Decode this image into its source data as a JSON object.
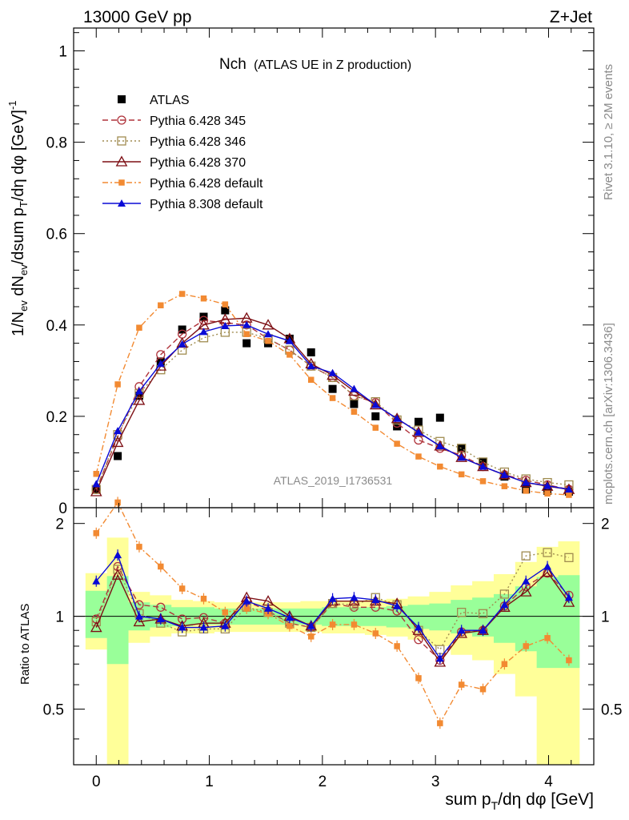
{
  "header": {
    "left": "13000 GeV pp",
    "right": "Z+Jet"
  },
  "side_text": {
    "rivet": "Rivet 3.1.10, ≥ 2M events",
    "mcplots": "mcplots.cern.ch [arXiv:1306.3436]"
  },
  "analysis_id": "ATLAS_2019_I1736531",
  "colors": {
    "atlas": "#000000",
    "p345": "#b0343c",
    "p346": "#a08c50",
    "p370": "#7d0f14",
    "p6def": "#f28a32",
    "p8def": "#0a0ad6",
    "band_outer": "#ffff99",
    "band_inner": "#99ff99"
  },
  "chart_data": {
    "type": "line",
    "title": "Nch (ATLAS UE in Z production)",
    "title_main": "Nch",
    "title_sub": "(ATLAS UE in Z production)",
    "ylabel": "1/N_ev dN_ev/dsum p_T/dη dφ [GeV]^-1",
    "xlabel": "sum p_T/dη dφ [GeV]",
    "ratio_ylabel": "Ratio to ATLAS",
    "xlim": [
      -0.2,
      4.4
    ],
    "ylim": [
      0,
      1.05
    ],
    "ratio_ylim": [
      0.33,
      2.25
    ],
    "x_ticks": [
      "0",
      "1",
      "2",
      "3",
      "4"
    ],
    "y_ticks": [
      "0",
      "0.2",
      "0.4",
      "0.6",
      "0.8",
      "1"
    ],
    "ratio_ticks": [
      "0.5",
      "1",
      "2"
    ],
    "x": [
      0.0,
      0.19,
      0.38,
      0.57,
      0.76,
      0.95,
      1.14,
      1.33,
      1.52,
      1.71,
      1.9,
      2.09,
      2.28,
      2.47,
      2.66,
      2.85,
      3.04,
      3.23,
      3.42,
      3.61,
      3.8,
      3.99,
      4.18
    ],
    "series": [
      {
        "name": "ATLAS",
        "key": "atlas",
        "style": "data",
        "values": [
          0.04,
          0.113,
          0.245,
          0.32,
          0.39,
          0.418,
          0.432,
          0.36,
          0.36,
          0.37,
          0.34,
          0.26,
          0.227,
          0.2,
          0.178,
          0.188,
          0.197,
          0.13,
          0.1,
          0.068,
          0.04,
          0.037,
          0.035
        ]
      },
      {
        "name": "Pythia 6.428 345",
        "key": "p345",
        "style": "circle",
        "dash": "7,4",
        "values": [
          0.04,
          0.155,
          0.265,
          0.335,
          0.38,
          0.41,
          0.405,
          0.4,
          0.37,
          0.345,
          0.31,
          0.285,
          0.245,
          0.23,
          0.185,
          0.148,
          0.13,
          0.115,
          0.09,
          0.072,
          0.06,
          0.05,
          0.04
        ]
      },
      {
        "name": "Pythia 6.428 346",
        "key": "p346",
        "style": "square",
        "dash": "2,3",
        "values": [
          0.04,
          0.16,
          0.25,
          0.302,
          0.345,
          0.372,
          0.384,
          0.384,
          0.37,
          0.345,
          0.31,
          0.285,
          0.245,
          0.232,
          0.192,
          0.17,
          0.145,
          0.13,
          0.1,
          0.078,
          0.063,
          0.055,
          0.05
        ]
      },
      {
        "name": "Pythia 6.428 370",
        "key": "p370",
        "style": "triangle-open",
        "dash": "",
        "values": [
          0.035,
          0.143,
          0.235,
          0.31,
          0.36,
          0.4,
          0.412,
          0.415,
          0.4,
          0.37,
          0.315,
          0.29,
          0.255,
          0.225,
          0.195,
          0.165,
          0.135,
          0.11,
          0.09,
          0.072,
          0.055,
          0.047,
          0.04
        ]
      },
      {
        "name": "Pythia 6.428 default",
        "key": "p6def",
        "style": "square-filled",
        "dash": "7,3,2,3",
        "values": [
          0.074,
          0.27,
          0.394,
          0.443,
          0.468,
          0.458,
          0.445,
          0.38,
          0.365,
          0.335,
          0.28,
          0.24,
          0.21,
          0.175,
          0.14,
          0.112,
          0.09,
          0.073,
          0.058,
          0.047,
          0.037,
          0.031,
          0.028
        ]
      },
      {
        "name": "Pythia 8.308 default",
        "key": "p8def",
        "style": "triangle-filled",
        "dash": "",
        "values": [
          0.052,
          0.168,
          0.255,
          0.315,
          0.358,
          0.385,
          0.398,
          0.4,
          0.38,
          0.365,
          0.31,
          0.295,
          0.26,
          0.225,
          0.195,
          0.165,
          0.135,
          0.11,
          0.09,
          0.072,
          0.055,
          0.048,
          0.04
        ]
      }
    ],
    "ratios": [
      {
        "key": "p345",
        "values": [
          0.98,
          1.45,
          1.09,
          1.07,
          0.98,
          0.99,
          0.95,
          1.12,
          1.04,
          0.95,
          0.92,
          1.1,
          1.07,
          1.07,
          1.04,
          0.84,
          0.72,
          0.89,
          0.9,
          1.08,
          1.25,
          1.38,
          1.17
        ]
      },
      {
        "key": "p346",
        "values": [
          0.96,
          1.42,
          1.02,
          0.95,
          0.89,
          0.91,
          0.91,
          1.07,
          1.03,
          0.95,
          0.92,
          1.1,
          1.09,
          1.15,
          1.09,
          0.9,
          0.78,
          1.03,
          1.02,
          1.18,
          1.57,
          1.61,
          1.55
        ]
      },
      {
        "key": "p370",
        "values": [
          0.92,
          1.36,
          0.96,
          0.98,
          0.93,
          0.95,
          0.95,
          1.15,
          1.12,
          1.0,
          0.93,
          1.12,
          1.12,
          1.12,
          1.1,
          0.9,
          0.71,
          0.88,
          0.9,
          1.07,
          1.2,
          1.39,
          1.11
        ]
      },
      {
        "key": "p6def",
        "values": [
          1.86,
          2.34,
          1.68,
          1.45,
          1.23,
          1.14,
          1.03,
          1.06,
          1.02,
          0.93,
          0.86,
          0.94,
          0.94,
          0.88,
          0.8,
          0.63,
          0.45,
          0.6,
          0.58,
          0.7,
          0.8,
          0.85,
          0.72
        ]
      },
      {
        "key": "p8def",
        "values": [
          1.3,
          1.58,
          1.0,
          0.98,
          0.92,
          0.92,
          0.93,
          1.12,
          1.06,
          0.99,
          0.93,
          1.14,
          1.15,
          1.13,
          1.08,
          0.92,
          0.73,
          0.9,
          0.9,
          1.09,
          1.3,
          1.45,
          1.15
        ]
      }
    ],
    "band_outer": [
      [
        0.78,
        1.38
      ],
      [
        0.3,
        1.8
      ],
      [
        0.82,
        1.2
      ],
      [
        0.86,
        1.17
      ],
      [
        0.88,
        1.13
      ],
      [
        0.88,
        1.12
      ],
      [
        0.89,
        1.11
      ],
      [
        0.89,
        1.11
      ],
      [
        0.89,
        1.11
      ],
      [
        0.89,
        1.11
      ],
      [
        0.89,
        1.12
      ],
      [
        0.88,
        1.12
      ],
      [
        0.88,
        1.12
      ],
      [
        0.87,
        1.13
      ],
      [
        0.86,
        1.14
      ],
      [
        0.84,
        1.16
      ],
      [
        0.8,
        1.2
      ],
      [
        0.75,
        1.26
      ],
      [
        0.72,
        1.3
      ],
      [
        0.65,
        1.37
      ],
      [
        0.55,
        1.5
      ],
      [
        0.3,
        1.68
      ],
      [
        0.3,
        1.75
      ]
    ],
    "band_inner": [
      [
        0.85,
        1.21
      ],
      [
        0.7,
        1.35
      ],
      [
        0.9,
        1.11
      ],
      [
        0.92,
        1.09
      ],
      [
        0.93,
        1.07
      ],
      [
        0.94,
        1.07
      ],
      [
        0.94,
        1.06
      ],
      [
        0.94,
        1.06
      ],
      [
        0.94,
        1.06
      ],
      [
        0.94,
        1.06
      ],
      [
        0.94,
        1.06
      ],
      [
        0.93,
        1.07
      ],
      [
        0.93,
        1.07
      ],
      [
        0.93,
        1.07
      ],
      [
        0.92,
        1.08
      ],
      [
        0.91,
        1.09
      ],
      [
        0.9,
        1.1
      ],
      [
        0.88,
        1.13
      ],
      [
        0.86,
        1.15
      ],
      [
        0.82,
        1.18
      ],
      [
        0.77,
        1.25
      ],
      [
        0.68,
        1.34
      ],
      [
        0.68,
        1.36
      ]
    ]
  }
}
